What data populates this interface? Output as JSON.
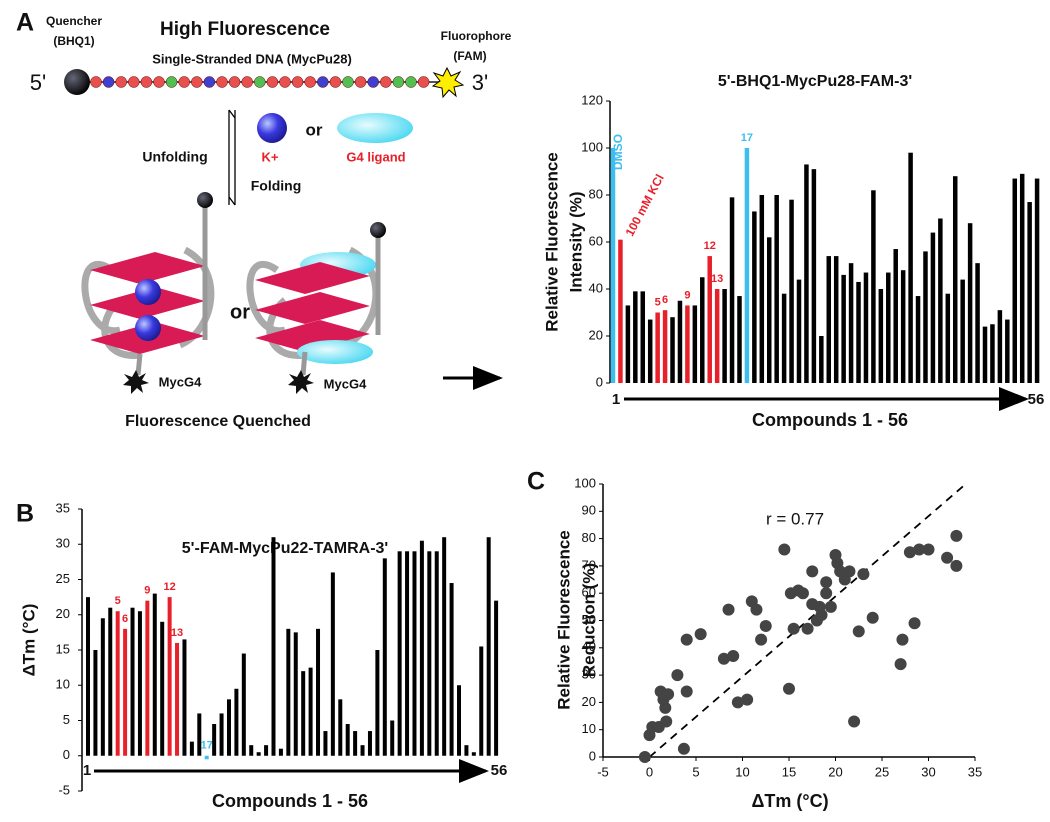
{
  "panel_labels": [
    "A",
    "B",
    "C"
  ],
  "diagram": {
    "quencher": [
      "Quencher",
      "(BHQ1)"
    ],
    "title": "High Fluorescence",
    "fluorophore": [
      "Fluorophore",
      "(FAM)"
    ],
    "strand": "Single-Stranded DNA (MycPu28)",
    "five_prime": "5'",
    "three_prime": "3'",
    "or_top": "or",
    "cation": "K+",
    "ligand": "G4 ligand",
    "unfolding": "Unfolding",
    "folding": "Folding",
    "or_bottom": "or",
    "g4_left": "MycG4",
    "g4_right": "MycG4",
    "caption": "Fluorescence Quenched"
  },
  "chart_data": [
    {
      "type": "bar",
      "title": "5'-BHQ1-MycPu28-FAM-3'",
      "y_label": [
        "Relative Fluorescence",
        "Intensity (%)"
      ],
      "x_label": "Compounds 1 - 56",
      "x_start": "1",
      "x_end": "56",
      "categories": [
        "DMSO",
        "100 mM KCl",
        null,
        null,
        null,
        null,
        "5",
        "6",
        null,
        null,
        "9",
        null,
        null,
        "12",
        "13",
        null,
        null,
        null,
        "17",
        null,
        null,
        null,
        null,
        null,
        null,
        null,
        null,
        null,
        null,
        null,
        null,
        null,
        null,
        null,
        null,
        null,
        null,
        null,
        null,
        null,
        null,
        null,
        null,
        null,
        null,
        null,
        null,
        null,
        null,
        null,
        null,
        null,
        null,
        null,
        null,
        null,
        null,
        null
      ],
      "values": [
        100,
        61,
        33,
        39,
        39,
        27,
        30,
        31,
        28,
        35,
        33,
        33,
        45,
        54,
        40,
        40,
        79,
        37,
        100,
        73,
        80,
        62,
        80,
        38,
        78,
        44,
        93,
        91,
        20,
        54,
        54,
        46,
        51,
        43,
        47,
        82,
        40,
        47,
        57,
        48,
        98,
        37,
        56,
        64,
        70,
        38,
        88,
        44,
        68,
        51,
        24,
        25,
        31,
        27,
        87,
        89,
        77,
        87
      ],
      "colors": [
        "#3cbfef",
        "#e8202a",
        "#000",
        "#000",
        "#000",
        "#000",
        "#e8202a",
        "#e8202a",
        "#000",
        "#000",
        "#e8202a",
        "#000",
        "#000",
        "#e8202a",
        "#e8202a",
        "#000",
        "#000",
        "#000",
        "#3cbfef",
        "#000",
        "#000",
        "#000",
        "#000",
        "#000",
        "#000",
        "#000",
        "#000",
        "#000",
        "#000",
        "#000",
        "#000",
        "#000",
        "#000",
        "#000",
        "#000",
        "#000",
        "#000",
        "#000",
        "#000",
        "#000",
        "#000",
        "#000",
        "#000",
        "#000",
        "#000",
        "#000",
        "#000",
        "#000",
        "#000",
        "#000",
        "#000",
        "#000",
        "#000",
        "#000",
        "#000",
        "#000",
        "#000",
        "#000"
      ],
      "ylim": [
        0,
        120
      ],
      "yticks": [
        0,
        20,
        40,
        60,
        80,
        100,
        120
      ]
    },
    {
      "type": "bar",
      "title": "5'-FAM-MycPu22-TAMRA-3'",
      "y_label": [
        "ΔTm (°C)"
      ],
      "x_label": "Compounds 1 - 56",
      "x_start": "1",
      "x_end": "56",
      "categories": [
        null,
        null,
        null,
        null,
        "5",
        "6",
        null,
        null,
        "9",
        null,
        null,
        "12",
        "13",
        null,
        null,
        null,
        "17",
        null,
        null,
        null,
        null,
        null,
        null,
        null,
        null,
        null,
        null,
        null,
        null,
        null,
        null,
        null,
        null,
        null,
        null,
        null,
        null,
        null,
        null,
        null,
        null,
        null,
        null,
        null,
        null,
        null,
        null,
        null,
        null,
        null,
        null,
        null,
        null,
        null,
        null,
        null
      ],
      "values": [
        22.5,
        15,
        19.5,
        21,
        20.5,
        18,
        21,
        20.5,
        22,
        23,
        19,
        22.5,
        16,
        16.5,
        2,
        6,
        -0.5,
        4.5,
        6,
        8,
        9.5,
        14.5,
        1.5,
        0.5,
        1.5,
        31,
        1,
        18,
        17.5,
        12,
        12.5,
        18,
        3.5,
        26,
        8,
        4.5,
        3.5,
        1.5,
        3.5,
        15,
        28,
        5,
        29,
        29,
        29,
        30.5,
        29,
        29,
        31,
        24.5,
        10,
        1.5,
        0.5,
        15.5,
        31,
        22
      ],
      "colors": [
        "#000",
        "#000",
        "#000",
        "#000",
        "#e8202a",
        "#e8202a",
        "#000",
        "#000",
        "#e8202a",
        "#000",
        "#000",
        "#e8202a",
        "#e8202a",
        "#000",
        "#000",
        "#000",
        "#3cbfef",
        "#000",
        "#000",
        "#000",
        "#000",
        "#000",
        "#000",
        "#000",
        "#000",
        "#000",
        "#000",
        "#000",
        "#000",
        "#000",
        "#000",
        "#000",
        "#000",
        "#000",
        "#000",
        "#000",
        "#000",
        "#000",
        "#000",
        "#000",
        "#000",
        "#000",
        "#000",
        "#000",
        "#000",
        "#000",
        "#000",
        "#000",
        "#000",
        "#000",
        "#000",
        "#000",
        "#000",
        "#000",
        "#000",
        "#000"
      ],
      "ylim": [
        -5,
        35
      ],
      "yticks": [
        -5,
        0,
        5,
        10,
        15,
        20,
        25,
        30,
        35
      ]
    },
    {
      "type": "scatter",
      "x_label": "ΔTm (°C)",
      "y_label": [
        "Relative Fluorescence",
        "Reduction (%)"
      ],
      "annotation": "r = 0.77",
      "x": [
        -0.5,
        0,
        0.3,
        1,
        1.2,
        1.5,
        1.7,
        1.8,
        2,
        3,
        3.7,
        4,
        4,
        5.5,
        8,
        8.5,
        9,
        9.5,
        10.5,
        11,
        11.5,
        12,
        12.5,
        14.5,
        15,
        15.2,
        15.5,
        16,
        16.5,
        17,
        17.5,
        17.5,
        18,
        18.3,
        18.5,
        19,
        19,
        19.5,
        20,
        20.2,
        20.5,
        21,
        21.5,
        22,
        22.5,
        23,
        24,
        27,
        27.2,
        28,
        28.5,
        29,
        30,
        32,
        33,
        33
      ],
      "y": [
        0,
        8,
        11,
        11,
        24,
        21,
        18,
        13,
        23,
        30,
        3,
        43,
        24,
        45,
        36,
        54,
        37,
        20,
        21,
        57,
        54,
        43,
        48,
        76,
        25,
        60,
        47,
        61,
        60,
        47,
        56,
        68,
        50,
        55,
        52,
        64,
        60,
        55,
        74,
        71,
        68,
        65,
        68,
        13,
        46,
        67,
        51,
        34,
        43,
        75,
        49,
        76,
        76,
        73,
        81,
        70
      ],
      "color": "#444",
      "xlim": [
        -5,
        35
      ],
      "xticks": [
        -5,
        0,
        5,
        10,
        15,
        20,
        25,
        30,
        35
      ],
      "ylim": [
        0,
        100
      ],
      "yticks": [
        0,
        10,
        20,
        30,
        40,
        50,
        60,
        70,
        80,
        90,
        100
      ],
      "reference_line": {
        "x": [
          0,
          34
        ],
        "y": [
          0,
          100
        ]
      }
    }
  ]
}
